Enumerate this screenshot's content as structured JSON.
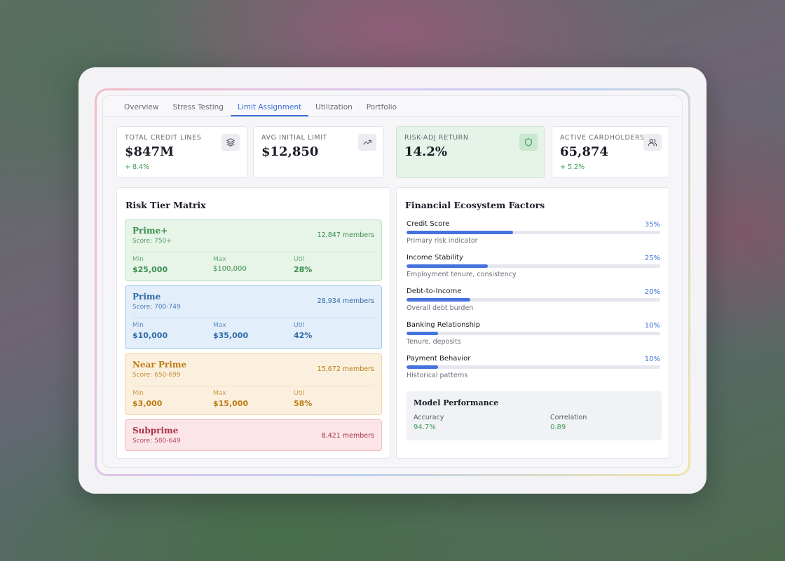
{
  "tabs": [
    "Overview",
    "Stress Testing",
    "Limit Assignment",
    "Utilization",
    "Portfolio"
  ],
  "active_tab": "Limit Assignment",
  "kpis": [
    {
      "label": "TOTAL CREDIT LINES",
      "value": "$847M",
      "delta": "+ 8.4%",
      "icon": "layers-icon"
    },
    {
      "label": "AVG INITIAL LIMIT",
      "value": "$12,850",
      "delta": "",
      "icon": "trending-up-icon"
    },
    {
      "label": "RISK-ADJ RETURN",
      "value": "14.2%",
      "delta": "",
      "icon": "shield-icon"
    },
    {
      "label": "ACTIVE CARDHOLDERS",
      "value": "65,874",
      "delta": "+ 5.2%",
      "icon": "users-icon"
    }
  ],
  "risk_matrix": {
    "title": "Risk Tier Matrix",
    "tiers": [
      {
        "name": "Prime+",
        "score": "Score: 750+",
        "members": "12,847 members",
        "min_label": "Min",
        "min": "$25,000",
        "max_label": "Max",
        "max": "$100,000",
        "util_label": "Util",
        "util": "28%"
      },
      {
        "name": "Prime",
        "score": "Score: 700-749",
        "members": "28,934 members",
        "min_label": "Min",
        "min": "$10,000",
        "max_label": "Max",
        "max": "$35,000",
        "util_label": "Util",
        "util": "42%"
      },
      {
        "name": "Near Prime",
        "score": "Score: 650-699",
        "members": "15,672 members",
        "min_label": "Min",
        "min": "$3,000",
        "max_label": "Max",
        "max": "$15,000",
        "util_label": "Util",
        "util": "58%"
      },
      {
        "name": "Subprime",
        "score": "Score: 580-649",
        "members": "8,421 members"
      }
    ]
  },
  "factors": {
    "title": "Financial Ecosystem Factors",
    "items": [
      {
        "name": "Credit Score",
        "pct": "35%",
        "desc": "Primary risk indicator",
        "fill": 0.42
      },
      {
        "name": "Income Stability",
        "pct": "25%",
        "desc": "Employment tenure, consistency",
        "fill": 0.32
      },
      {
        "name": "Debt-to-Income",
        "pct": "20%",
        "desc": "Overall debt burden",
        "fill": 0.25
      },
      {
        "name": "Banking Relationship",
        "pct": "10%",
        "desc": "Tenure, deposits",
        "fill": 0.125
      },
      {
        "name": "Payment Behavior",
        "pct": "10%",
        "desc": "Historical patterns",
        "fill": 0.125
      }
    ],
    "model": {
      "title": "Model Performance",
      "accuracy_label": "Accuracy",
      "accuracy": "94.7%",
      "correlation_label": "Correlation",
      "correlation": "0.89"
    }
  }
}
